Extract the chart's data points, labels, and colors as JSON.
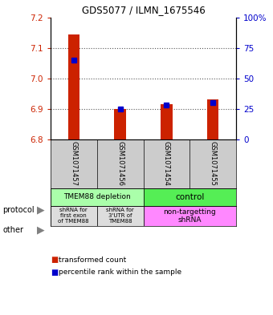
{
  "title": "GDS5077 / ILMN_1675546",
  "samples": [
    "GSM1071457",
    "GSM1071456",
    "GSM1071454",
    "GSM1071455"
  ],
  "transformed_counts": [
    7.145,
    6.9,
    6.915,
    6.93
  ],
  "percentile_ranks": [
    65,
    25,
    28,
    30
  ],
  "ylim_left": [
    6.8,
    7.2
  ],
  "yticks_left": [
    6.8,
    6.9,
    7.0,
    7.1,
    7.2
  ],
  "ylim_right": [
    0,
    100
  ],
  "yticks_right": [
    0,
    25,
    50,
    75,
    100
  ],
  "bar_bottom": 6.8,
  "red_color": "#cc2200",
  "blue_color": "#0000cc",
  "background_color": "#ffffff",
  "grid_color": "#555555",
  "sample_bg_color": "#cccccc",
  "protocol_light_green": "#aaffaa",
  "protocol_green": "#55ee55",
  "other_gray": "#dddddd",
  "other_pink": "#ff88ff",
  "bar_width": 0.25,
  "figsize": [
    3.4,
    3.93
  ],
  "dpi": 100
}
